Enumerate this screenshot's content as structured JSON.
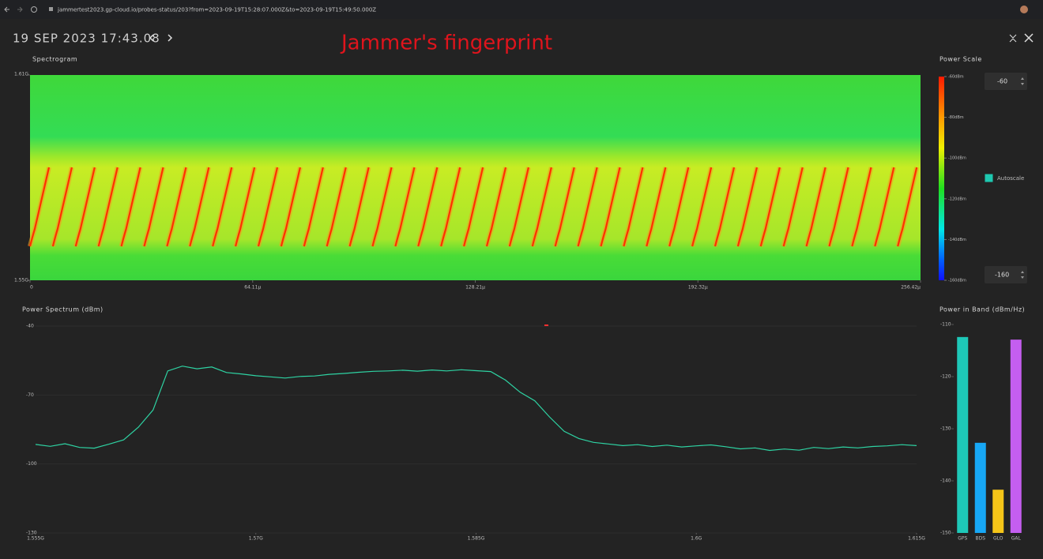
{
  "browser": {
    "url": "jammertest2023.gp-cloud.io/probes-status/203?from=2023-09-19T15:28:07.000Z&to=2023-09-19T15:49:50.000Z"
  },
  "header": {
    "timestamp": "19 SEP 2023 17:43.08",
    "annotation": "Jammer's fingerprint"
  },
  "chart_data": [
    {
      "type": "spectrogram",
      "title": "Spectrogram",
      "xlim": [
        0,
        256.42
      ],
      "xticks": [
        0,
        {
          "value": 64.11,
          "label": "64.11µ"
        },
        {
          "value": 128.21,
          "label": "128.21µ"
        },
        {
          "value": 192.32,
          "label": "192.32µ"
        },
        {
          "value": 256.42,
          "label": "256.42µ"
        }
      ],
      "ylim": [
        1.55,
        1.61
      ],
      "yticks": [
        {
          "value": 1.61,
          "label": "1.61G"
        },
        {
          "value": 1.55,
          "label": "1.55G"
        }
      ]
    },
    {
      "type": "colorbar",
      "title": "Power Scale",
      "ylim": [
        -160,
        -60
      ],
      "yticks": [
        {
          "value": -60,
          "label": "-60dBm"
        },
        {
          "value": -80,
          "label": "-80dBm"
        },
        {
          "value": -100,
          "label": "-100dBm"
        },
        {
          "value": -120,
          "label": "-120dBm"
        },
        {
          "value": -140,
          "label": "-140dBm"
        },
        {
          "value": -160,
          "label": "-160dBm"
        }
      ],
      "max_input": -60,
      "min_input": -160,
      "autoscale_label": "Autoscale",
      "autoscale": true,
      "checkbox_color": "#1ec8b0"
    },
    {
      "type": "line",
      "title": "Power Spectrum (dBm)",
      "x": [
        1.555,
        1.556,
        1.557,
        1.558,
        1.559,
        1.56,
        1.561,
        1.562,
        1.563,
        1.564,
        1.565,
        1.566,
        1.567,
        1.568,
        1.569,
        1.57,
        1.571,
        1.572,
        1.573,
        1.574,
        1.575,
        1.576,
        1.577,
        1.578,
        1.579,
        1.58,
        1.581,
        1.582,
        1.583,
        1.584,
        1.585,
        1.586,
        1.587,
        1.588,
        1.589,
        1.59,
        1.591,
        1.592,
        1.593,
        1.594,
        1.595,
        1.596,
        1.597,
        1.598,
        1.599,
        1.6,
        1.601,
        1.602,
        1.603,
        1.604,
        1.605,
        1.606,
        1.607,
        1.608,
        1.609,
        1.61,
        1.611,
        1.612,
        1.613,
        1.614,
        1.615
      ],
      "series": [
        {
          "color": "#2ed3a3",
          "values": [
            -91.5,
            -92.3,
            -91.2,
            -92.8,
            -93.1,
            -91.4,
            -89.5,
            -84.0,
            -76.5,
            -59.5,
            -57.4,
            -58.6,
            -57.8,
            -60.2,
            -60.8,
            -61.6,
            -62.1,
            -62.6,
            -61.9,
            -61.7,
            -61.0,
            -60.6,
            -60.1,
            -59.7,
            -59.5,
            -59.2,
            -59.6,
            -59.1,
            -59.5,
            -59.0,
            -59.4,
            -59.8,
            -63.5,
            -68.8,
            -72.5,
            -79.5,
            -85.8,
            -88.9,
            -90.6,
            -91.3,
            -92.0,
            -91.6,
            -92.4,
            -91.8,
            -92.6,
            -92.1,
            -91.7,
            -92.5,
            -93.4,
            -93.0,
            -94.1,
            -93.5,
            -94.0,
            -92.8,
            -93.3,
            -92.6,
            -93.0,
            -92.4,
            -92.1,
            -91.6,
            -92.0
          ]
        }
      ],
      "xlim": [
        1.555,
        1.615
      ],
      "xticks": [
        {
          "value": 1.555,
          "label": "1.555G"
        },
        {
          "value": 1.57,
          "label": "1.57G"
        },
        {
          "value": 1.585,
          "label": "1.585G"
        },
        {
          "value": 1.6,
          "label": "1.6G"
        },
        {
          "value": 1.615,
          "label": "1.615G"
        }
      ],
      "ylim": [
        -130,
        -40
      ],
      "yticks": [
        -40,
        -70,
        -100,
        -130
      ],
      "grid": true
    },
    {
      "type": "bar",
      "title": "Power in Band (dBm/Hz)",
      "categories": [
        "GPS",
        "BDS",
        "GLO",
        "GAL"
      ],
      "values": [
        -112.4,
        -132.7,
        -141.7,
        -112.9
      ],
      "colors": [
        "#1ec8b8",
        "#17a7f5",
        "#f5c518",
        "#c45ef0"
      ],
      "ylim": [
        -150,
        -110
      ],
      "yticks": [
        -110,
        -120,
        -130,
        -140,
        -150
      ]
    }
  ]
}
